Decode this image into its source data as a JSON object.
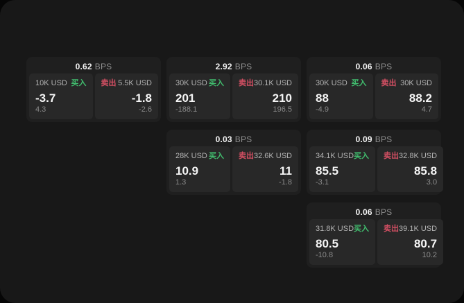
{
  "labels": {
    "buy": "买入",
    "sell": "卖出",
    "bps_unit": "BPS"
  },
  "colors": {
    "outer_background": "#060606",
    "window_background": "#181818",
    "card_background": "#1f1f1f",
    "panel_background": "#282828",
    "buy_green": "#41bd6e",
    "sell_red": "#d44f63",
    "value_white": "#f5f5f5",
    "label_gray": "#b3b3b3",
    "sub_gray": "#8a8a8a"
  },
  "cards": [
    {
      "bps": "0.62",
      "buy": {
        "amount": "10K USD",
        "value": "-3.7",
        "sub": "4.3"
      },
      "sell": {
        "amount": "5.5K USD",
        "value": "-1.8",
        "sub": "-2.6"
      }
    },
    {
      "bps": "2.92",
      "buy": {
        "amount": "30K USD",
        "value": "201",
        "sub": "-188.1"
      },
      "sell": {
        "amount": "30.1K USD",
        "value": "210",
        "sub": "196.5"
      }
    },
    {
      "bps": "0.06",
      "buy": {
        "amount": "30K USD",
        "value": "88",
        "sub": "-4.9"
      },
      "sell": {
        "amount": "30K USD",
        "value": "88.2",
        "sub": "4.7"
      }
    },
    {
      "bps": "0.03",
      "buy": {
        "amount": "28K USD",
        "value": "10.9",
        "sub": "1.3"
      },
      "sell": {
        "amount": "32.6K USD",
        "value": "11",
        "sub": "-1.8"
      }
    },
    {
      "bps": "0.09",
      "buy": {
        "amount": "34.1K USD",
        "value": "85.5",
        "sub": "-3.1"
      },
      "sell": {
        "amount": "32.8K USD",
        "value": "85.8",
        "sub": "3.0"
      }
    },
    {
      "bps": "0.06",
      "buy": {
        "amount": "31.8K USD",
        "value": "80.5",
        "sub": "-10.8"
      },
      "sell": {
        "amount": "39.1K USD",
        "value": "80.7",
        "sub": "10.2"
      }
    }
  ]
}
